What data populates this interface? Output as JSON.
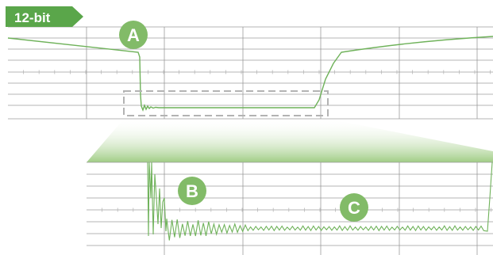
{
  "colors": {
    "accent": "#6fb25a",
    "badge": "#5aa64a",
    "grid": "#9b9b9b",
    "tick": "#b8b8b8",
    "callout_fill": "#82bb68",
    "zoom_box": "#b3b3b3"
  },
  "badge": {
    "label": "12-bit"
  },
  "callouts": [
    {
      "id": "A",
      "label": "A"
    },
    {
      "id": "B",
      "label": "B"
    },
    {
      "id": "C",
      "label": "C"
    }
  ],
  "icons": {
    "zoom_indicator": "dashed-selection-box"
  }
}
